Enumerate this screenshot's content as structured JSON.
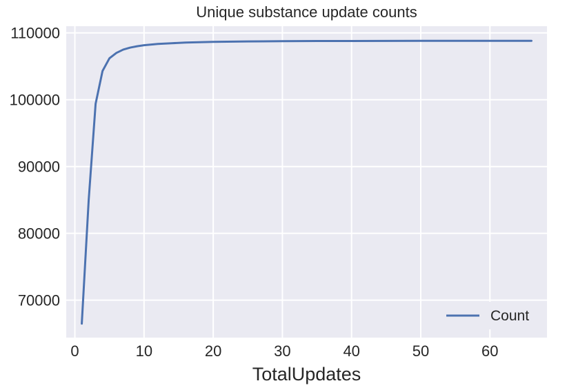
{
  "chart_data": {
    "type": "line",
    "title": "Unique substance update counts",
    "xlabel": "TotalUpdates",
    "ylabel": "",
    "xlim": [
      -1.25,
      68.25
    ],
    "ylim": [
      64400,
      111000
    ],
    "xticks": [
      0,
      10,
      20,
      30,
      40,
      50,
      60
    ],
    "yticks": [
      70000,
      80000,
      90000,
      100000,
      110000
    ],
    "x_tick_labels": [
      "0",
      "10",
      "20",
      "30",
      "40",
      "50",
      "60"
    ],
    "y_tick_labels": [
      "70000",
      "80000",
      "90000",
      "100000",
      "110000"
    ],
    "grid": true,
    "legend_position": "lower-right",
    "series": [
      {
        "name": "Count",
        "color": "#4c72b0",
        "x": [
          1,
          2,
          3,
          4,
          5,
          6,
          7,
          8,
          9,
          10,
          12,
          14,
          16,
          18,
          20,
          25,
          30,
          35,
          40,
          45,
          50,
          55,
          60,
          66
        ],
        "y": [
          66500,
          85000,
          99400,
          104300,
          106200,
          107000,
          107500,
          107800,
          108000,
          108150,
          108350,
          108450,
          108550,
          108600,
          108650,
          108720,
          108760,
          108780,
          108790,
          108800,
          108805,
          108810,
          108810,
          108810
        ]
      }
    ]
  },
  "colors": {
    "plot_background": "#eaeaf2",
    "grid": "#ffffff",
    "text": "#262626"
  }
}
